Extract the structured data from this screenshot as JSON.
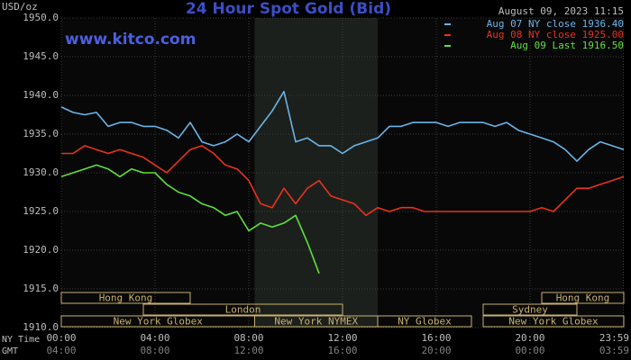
{
  "chart_data": {
    "type": "line",
    "title": "24 Hour Spot Gold (Bid)",
    "timestamp": "August 09, 2023 11:15",
    "watermark": "www.kitco.com",
    "ylabel": "USD/oz",
    "xlabel": "NY Time",
    "x2label": "GMT",
    "x": [
      0,
      0.5,
      1,
      1.5,
      2,
      2.5,
      3,
      3.5,
      4,
      4.5,
      5,
      5.5,
      6,
      6.5,
      7,
      7.5,
      8,
      8.5,
      9,
      9.5,
      10,
      10.5,
      11,
      11.5,
      12,
      12.5,
      13,
      13.5,
      14,
      14.5,
      15,
      15.5,
      16,
      16.5,
      17,
      17.5,
      18,
      18.5,
      19,
      19.5,
      20,
      20.5,
      21,
      21.5,
      22,
      22.5,
      23,
      23.5,
      24
    ],
    "series": [
      {
        "name": "Aug 07 NY close 1936.40",
        "color": "#6ab4e8",
        "values": [
          1938.5,
          1937.8,
          1937.5,
          1937.8,
          1936,
          1936.5,
          1936.5,
          1936,
          1936,
          1935.5,
          1934.5,
          1936.5,
          1934,
          1933.5,
          1934,
          1935,
          1934,
          1936,
          1938,
          1940.5,
          1934,
          1934.5,
          1933.5,
          1933.5,
          1932.5,
          1933.5,
          1934,
          1934.5,
          1936,
          1936,
          1936.5,
          1936.5,
          1936.5,
          1936,
          1936.5,
          1936.5,
          1936.5,
          1936,
          1936.5,
          1935.5,
          1935,
          1934.5,
          1934,
          1933,
          1931.5,
          1933,
          1934,
          1933.5,
          1933
        ]
      },
      {
        "name": "Aug 08 NY close 1925.00",
        "color": "#e8321e",
        "values": [
          1932.5,
          1932.5,
          1933.5,
          1933,
          1932.5,
          1933,
          1932.5,
          1932,
          1931,
          1930,
          1931.5,
          1933,
          1933.5,
          1932.5,
          1931,
          1930.5,
          1929,
          1926,
          1925.5,
          1928,
          1926,
          1928,
          1929,
          1927,
          1926.5,
          1926,
          1924.5,
          1925.5,
          1925,
          1925.5,
          1925.5,
          1925,
          1925,
          1925,
          1925,
          1925,
          1925,
          1925,
          1925,
          1925,
          1925,
          1925.5,
          1925,
          1926.5,
          1928,
          1928,
          1928.5,
          1929,
          1929.5
        ]
      },
      {
        "name": "Aug 09 Last 1916.50",
        "color": "#5fe03c",
        "values": [
          1929.5,
          1930,
          1930.5,
          1931,
          1930.5,
          1929.5,
          1930.5,
          1930,
          1930,
          1928.5,
          1927.5,
          1927,
          1926,
          1925.5,
          1924.5,
          1925,
          1922.5,
          1923.5,
          1923,
          1923.5,
          1924.5,
          1921,
          1917,
          null,
          null,
          null,
          null,
          null,
          null,
          null,
          null,
          null,
          null,
          null,
          null,
          null,
          null,
          null,
          null,
          null,
          null,
          null,
          null,
          null,
          null,
          null,
          null,
          null,
          null
        ]
      }
    ],
    "xlim": [
      0,
      24
    ],
    "xticks": [
      {
        "value": 0,
        "label": "00:00"
      },
      {
        "value": 4,
        "label": "04:00"
      },
      {
        "value": 8,
        "label": "08:00"
      },
      {
        "value": 12,
        "label": "12:00"
      },
      {
        "value": 16,
        "label": "16:00"
      },
      {
        "value": 20,
        "label": "20:00"
      },
      {
        "value": 23.983,
        "label": "23:59"
      }
    ],
    "x2ticklabels": [
      "04:00",
      "08:00",
      "12:00",
      "16:00",
      "20:00",
      "00:00",
      "03:59"
    ],
    "ylim": [
      1910,
      1950
    ],
    "yticks": [
      {
        "value": 1910,
        "label": "1910.0"
      },
      {
        "value": 1915,
        "label": "1915.0"
      },
      {
        "value": 1920,
        "label": "1920.0"
      },
      {
        "value": 1925,
        "label": "1925.0"
      },
      {
        "value": 1930,
        "label": "1930.0"
      },
      {
        "value": 1935,
        "label": "1935.0"
      },
      {
        "value": 1940,
        "label": "1940.0"
      },
      {
        "value": 1945,
        "label": "1945.0"
      },
      {
        "value": 1950,
        "label": "1950.0"
      }
    ],
    "grid": true,
    "highlight": [
      8.25,
      13.5
    ],
    "sessions": [
      {
        "name": "Hong Kong",
        "start": 0,
        "end": 5.5
      },
      {
        "name": "London",
        "start": 3.5,
        "end": 12
      },
      {
        "name": "New York Globex",
        "start": 0,
        "end": 8.25
      },
      {
        "name": "New York NYMEX",
        "start": 8.25,
        "end": 13.5
      },
      {
        "name": "NY Globex",
        "start": 13.5,
        "end": 17.5
      },
      {
        "name": "Sydney",
        "start": 18,
        "end": 22
      },
      {
        "name": "Hong Kong",
        "start": 20.5,
        "end": 24
      },
      {
        "name": "New York Globex",
        "start": 18,
        "end": 24
      }
    ]
  }
}
